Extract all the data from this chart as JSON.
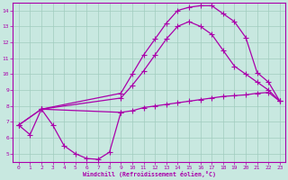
{
  "xlabel": "Windchill (Refroidissement éolien,°C)",
  "xlim": [
    -0.5,
    23.5
  ],
  "ylim": [
    4.5,
    14.5
  ],
  "bg_color": "#c8e8e0",
  "line_color": "#aa00aa",
  "grid_color": "#a0ccbe",
  "curve1_x": [
    0,
    1,
    2,
    3,
    4,
    5,
    6,
    7,
    8,
    9
  ],
  "curve1_y": [
    6.8,
    6.2,
    7.8,
    6.8,
    5.5,
    5.0,
    4.7,
    4.65,
    5.1,
    7.6
  ],
  "curve2_x": [
    0,
    2,
    9,
    10,
    11,
    12,
    13,
    14,
    15,
    16,
    17,
    18,
    19,
    20,
    21,
    22,
    23
  ],
  "curve2_y": [
    6.8,
    7.8,
    7.6,
    7.7,
    7.9,
    8.0,
    8.1,
    8.2,
    8.3,
    8.4,
    8.5,
    8.6,
    8.65,
    8.7,
    8.8,
    8.85,
    8.3
  ],
  "curve3_x": [
    0,
    2,
    9,
    10,
    11,
    12,
    13,
    14,
    15,
    16,
    17,
    18,
    19,
    20,
    21,
    22,
    23
  ],
  "curve3_y": [
    6.8,
    7.8,
    8.5,
    9.3,
    10.2,
    11.2,
    12.2,
    13.0,
    13.3,
    13.0,
    12.5,
    11.5,
    10.5,
    10.0,
    9.5,
    9.0,
    8.3
  ],
  "curve4_x": [
    2,
    9,
    10,
    11,
    12,
    13,
    14,
    15,
    16,
    17,
    18,
    19,
    20,
    21,
    22,
    23
  ],
  "curve4_y": [
    7.8,
    8.8,
    10.0,
    11.2,
    12.2,
    13.2,
    14.0,
    14.2,
    14.3,
    14.3,
    13.8,
    13.3,
    12.3,
    10.1,
    9.5,
    8.3
  ],
  "xticks": [
    0,
    1,
    2,
    3,
    4,
    5,
    6,
    7,
    8,
    9,
    10,
    11,
    12,
    13,
    14,
    15,
    16,
    17,
    18,
    19,
    20,
    21,
    22,
    23
  ],
  "yticks": [
    5,
    6,
    7,
    8,
    9,
    10,
    11,
    12,
    13,
    14
  ]
}
